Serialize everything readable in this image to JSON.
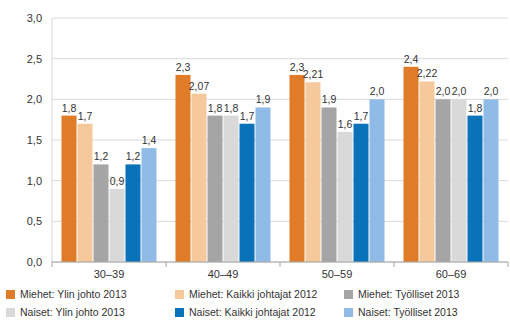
{
  "chart_data": {
    "type": "bar",
    "categories": [
      "30–39",
      "40–49",
      "50–59",
      "60–69"
    ],
    "series": [
      {
        "name": "Miehet: Ylin johto 2013",
        "color": "#e07b27",
        "values": [
          1.8,
          2.3,
          2.3,
          2.4
        ],
        "value_labels": [
          "1,8",
          "2,3",
          "2,3",
          "2,4"
        ]
      },
      {
        "name": "Miehet: Kaikki johtajat 2012",
        "color": "#f6c99d",
        "values": [
          1.7,
          2.07,
          2.21,
          2.22
        ],
        "value_labels": [
          "1,7",
          "2,07",
          "2,21",
          "2,22"
        ]
      },
      {
        "name": "Miehet: Työlliset 2013",
        "color": "#a5a5a5",
        "values": [
          1.2,
          1.8,
          1.9,
          2.0
        ],
        "value_labels": [
          "1,2",
          "1,8",
          "1,9",
          "2,0"
        ]
      },
      {
        "name": "Naiset: Ylin johto 2013",
        "color": "#d9d9d9",
        "values": [
          0.9,
          1.8,
          1.6,
          2.0
        ],
        "value_labels": [
          "0,9",
          "1,8",
          "1,6",
          "2,0"
        ]
      },
      {
        "name": "Naiset: Kaikki johtajat 2012",
        "color": "#0a72b8",
        "values": [
          1.2,
          1.7,
          1.7,
          1.8
        ],
        "value_labels": [
          "1,2",
          "1,7",
          "1,7",
          "1,8"
        ]
      },
      {
        "name": "Naiset: Työlliset 2013",
        "color": "#8fbbe6",
        "values": [
          1.4,
          1.9,
          2.0,
          2.0
        ],
        "value_labels": [
          "1,4",
          "1,9",
          "2,0",
          "2,0"
        ]
      }
    ],
    "ylim": [
      0,
      3
    ],
    "yticks": [
      {
        "value": 0,
        "label": "0,0"
      },
      {
        "value": 0.5,
        "label": "0,5"
      },
      {
        "value": 1,
        "label": "1,0"
      },
      {
        "value": 1.5,
        "label": "1,5"
      },
      {
        "value": 2,
        "label": "2,0"
      },
      {
        "value": 2.5,
        "label": "2,5"
      },
      {
        "value": 3,
        "label": "3,0"
      }
    ],
    "grid": true,
    "data_labels": true,
    "legend": "bottom"
  }
}
